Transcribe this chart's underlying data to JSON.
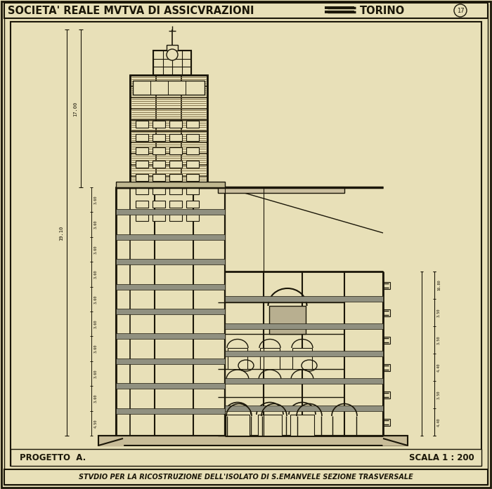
{
  "bg_color": "#e8e0b8",
  "line_color": "#1a1608",
  "title_text": "SOCIETA' REALE MVTVA DI ASSICVRAZIONI",
  "title_right": "TORINO",
  "bottom_text": "STVDIO PER LA RICOSTRUZIONE DELL'ISOLATO DI S.EMANVELE SEZIONE TRASVERSALE",
  "label_left": "PROGETTO  A.",
  "label_right": "SCALA 1 : 200",
  "page_number": "17",
  "fig_width": 7.0,
  "fig_height": 6.97,
  "brick_color": "#c8b882",
  "dark_fill": "#a09060",
  "medium_fill": "#ccc0a0"
}
